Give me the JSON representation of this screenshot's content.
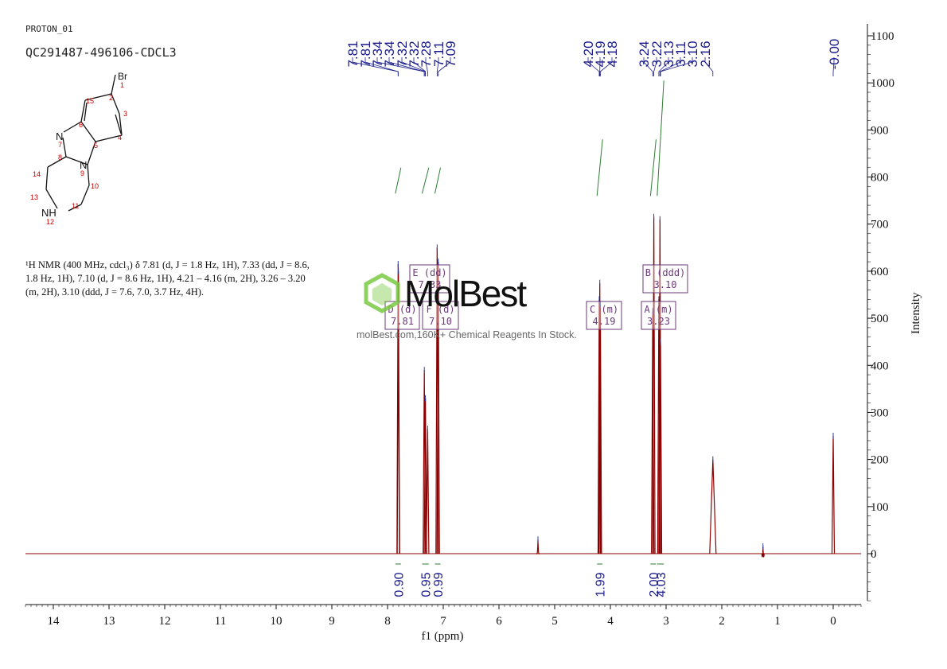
{
  "header": {
    "experiment": "PROTON_01",
    "sample": "QC291487-496106-CDCL3"
  },
  "description": {
    "line1": "¹H NMR (400 MHz, cdcl₃) δ 7.81 (d, J = 1.8 Hz, 1H), 7.33 (dd, J = 8.6,",
    "line2": "1.8 Hz, 1H), 7.10 (d, J = 8.6 Hz, 1H), 4.21 – 4.16 (m, 2H), 3.26 – 3.20",
    "line3": "(m, 2H), 3.10 (ddd, J = 7.6, 7.0, 3.7 Hz, 4H)."
  },
  "watermark": {
    "brand": "MolBest",
    "tagline": "molBest.com,160K+ Chemical Reagents In Stock."
  },
  "structure": {
    "atoms": [
      "Br",
      "1",
      "2",
      "3",
      "4",
      "5",
      "6",
      "15",
      "N",
      "7",
      "8",
      "N",
      "9",
      "10",
      "11",
      "NH",
      "12",
      "13",
      "14"
    ]
  },
  "chart_data": {
    "type": "line",
    "title": "",
    "xlabel": "f1 (ppm)",
    "ylabel": "Intensity",
    "xlim": [
      14.5,
      -0.5
    ],
    "ylim": [
      -100,
      1100
    ],
    "x_ticks": [
      14,
      13,
      12,
      11,
      10,
      9,
      8,
      7,
      6,
      5,
      4,
      3,
      2,
      1,
      0
    ],
    "y_ticks": [
      0,
      100,
      200,
      300,
      400,
      500,
      600,
      700,
      800,
      900,
      1000,
      1100
    ],
    "peaks": [
      {
        "ppm": 7.81,
        "height": 615
      },
      {
        "ppm": 7.805,
        "height": 600
      },
      {
        "ppm": 7.34,
        "height": 390
      },
      {
        "ppm": 7.32,
        "height": 330
      },
      {
        "ppm": 7.28,
        "height": 265
      },
      {
        "ppm": 7.11,
        "height": 650
      },
      {
        "ppm": 7.09,
        "height": 620
      },
      {
        "ppm": 5.3,
        "height": 30
      },
      {
        "ppm": 4.2,
        "height": 540
      },
      {
        "ppm": 4.19,
        "height": 575
      },
      {
        "ppm": 4.18,
        "height": 530
      },
      {
        "ppm": 3.24,
        "height": 515
      },
      {
        "ppm": 3.22,
        "height": 715
      },
      {
        "ppm": 3.13,
        "height": 540
      },
      {
        "ppm": 3.11,
        "height": 710
      },
      {
        "ppm": 3.1,
        "height": 450
      },
      {
        "ppm": 2.16,
        "height": 200
      },
      {
        "ppm": 1.26,
        "height": 15
      },
      {
        "ppm": 0.0,
        "height": 250
      }
    ],
    "peak_labels": [
      {
        "text": "7.81",
        "ppm": 7.81
      },
      {
        "text": "7.81",
        "ppm": 7.81
      },
      {
        "text": "7.34",
        "ppm": 7.34
      },
      {
        "text": "7.34",
        "ppm": 7.34
      },
      {
        "text": "7.32",
        "ppm": 7.32
      },
      {
        "text": "7.32",
        "ppm": 7.32
      },
      {
        "text": "7.28",
        "ppm": 7.28
      },
      {
        "text": "7.11",
        "ppm": 7.11
      },
      {
        "text": "7.09",
        "ppm": 7.09
      },
      {
        "text": "4.20",
        "ppm": 4.2
      },
      {
        "text": "4.19",
        "ppm": 4.19
      },
      {
        "text": "4.18",
        "ppm": 4.18
      },
      {
        "text": "3.24",
        "ppm": 3.24
      },
      {
        "text": "3.22",
        "ppm": 3.22
      },
      {
        "text": "3.13",
        "ppm": 3.13
      },
      {
        "text": "3.11",
        "ppm": 3.11
      },
      {
        "text": "3.10",
        "ppm": 3.1
      },
      {
        "text": "2.16",
        "ppm": 2.16
      },
      {
        "text": "-0.00",
        "ppm": 0.0
      }
    ],
    "integrals": [
      {
        "value": "0.90",
        "from": 7.86,
        "to": 7.76
      },
      {
        "value": "0.95",
        "from": 7.38,
        "to": 7.26
      },
      {
        "value": "0.99",
        "from": 7.15,
        "to": 7.05
      },
      {
        "value": "1.99",
        "from": 4.24,
        "to": 4.14
      },
      {
        "value": "2.00",
        "from": 3.28,
        "to": 3.18
      },
      {
        "value": "4.03",
        "from": 3.16,
        "to": 3.04
      }
    ],
    "multiplets": [
      {
        "label": "D (d)",
        "shift": "7.81",
        "ppm": 7.81
      },
      {
        "label": "E (dd)",
        "shift": "7.33",
        "ppm": 7.33
      },
      {
        "label": "F (d)",
        "shift": "7.10",
        "ppm": 7.1
      },
      {
        "label": "C (m)",
        "shift": "4.19",
        "ppm": 4.19
      },
      {
        "label": "B (ddd)",
        "shift": "3.10",
        "ppm": 3.1
      },
      {
        "label": "A (m)",
        "shift": "3.23",
        "ppm": 3.23
      }
    ],
    "integral_curves": [
      {
        "ppm_start": 7.86,
        "ppm_end": 7.76,
        "y_start": 765,
        "y_end": 820
      },
      {
        "ppm_start": 7.38,
        "ppm_end": 7.26,
        "y_start": 765,
        "y_end": 820
      },
      {
        "ppm_start": 7.15,
        "ppm_end": 7.05,
        "y_start": 765,
        "y_end": 820
      },
      {
        "ppm_start": 4.24,
        "ppm_end": 4.14,
        "y_start": 760,
        "y_end": 880
      },
      {
        "ppm_start": 3.28,
        "ppm_end": 3.18,
        "y_start": 760,
        "y_end": 880
      },
      {
        "ppm_start": 3.16,
        "ppm_end": 3.04,
        "y_start": 760,
        "y_end": 1005
      }
    ],
    "colors": {
      "spectrum": "#8B0000",
      "labels": "#1a1a8c",
      "integral": "#2e7d32",
      "box": "#6b3a7a"
    }
  }
}
